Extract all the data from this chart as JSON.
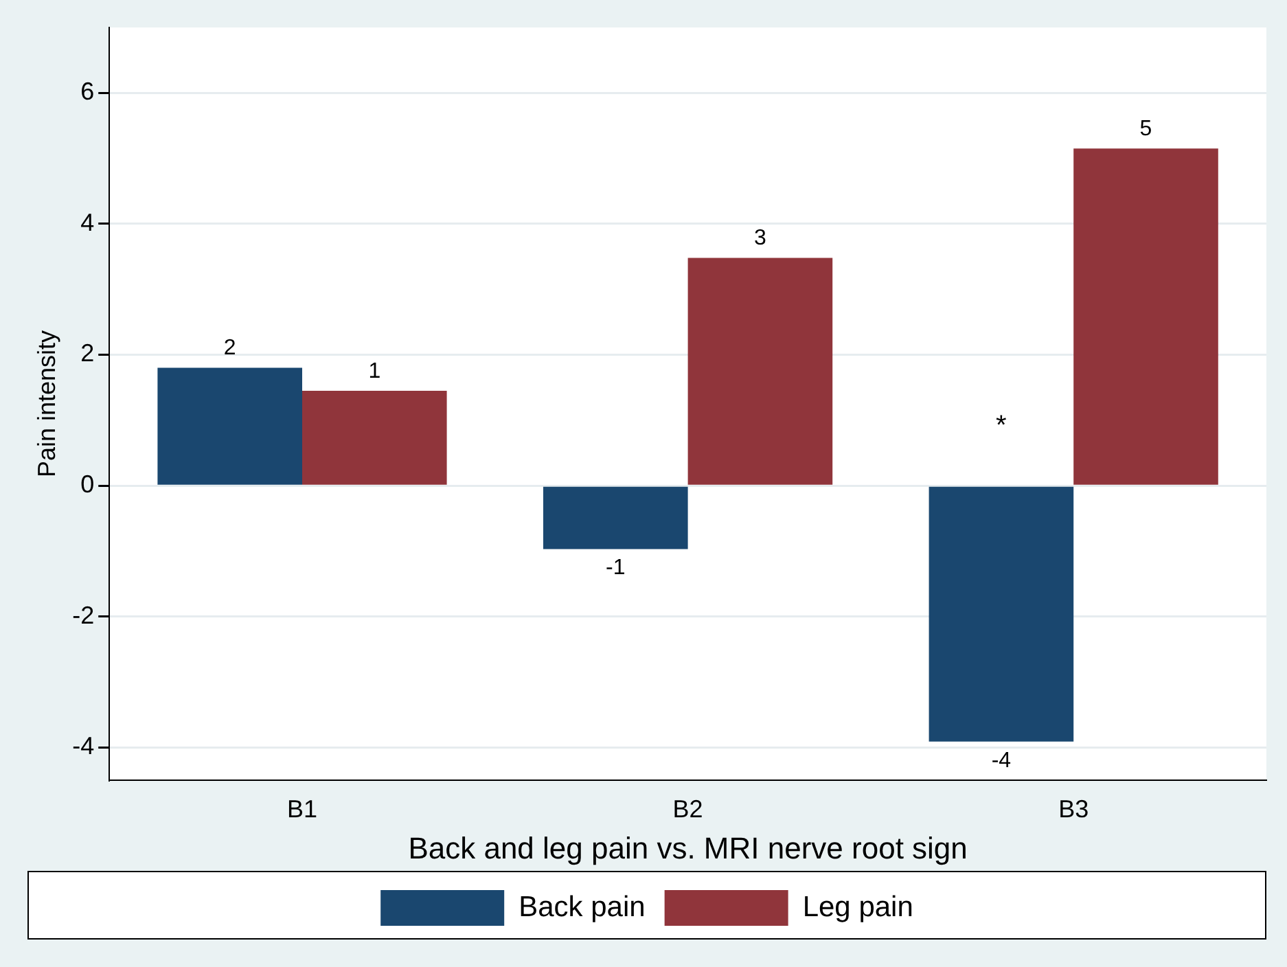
{
  "chart_data": {
    "type": "bar",
    "xlabel": "Back and leg pain vs. MRI nerve root sign",
    "ylabel": "Pain intensity",
    "categories": [
      "B1",
      "B2",
      "B3"
    ],
    "series": [
      {
        "name": "Back pain",
        "color": "#1a476f",
        "values": [
          1.8,
          -0.97,
          -3.91
        ],
        "value_labels": [
          "2",
          "-1",
          "-4"
        ]
      },
      {
        "name": "Leg pain",
        "color": "#90353b",
        "values": [
          1.45,
          3.48,
          5.15
        ],
        "value_labels": [
          "1",
          "3",
          "5"
        ]
      }
    ],
    "ylim": [
      -4.5,
      7
    ],
    "yticks": [
      -4,
      -2,
      0,
      2,
      4,
      6
    ],
    "grid": "y",
    "legend": "bottom",
    "annotations": [
      {
        "text": "*",
        "x": "B3",
        "y": 0.9
      }
    ]
  }
}
